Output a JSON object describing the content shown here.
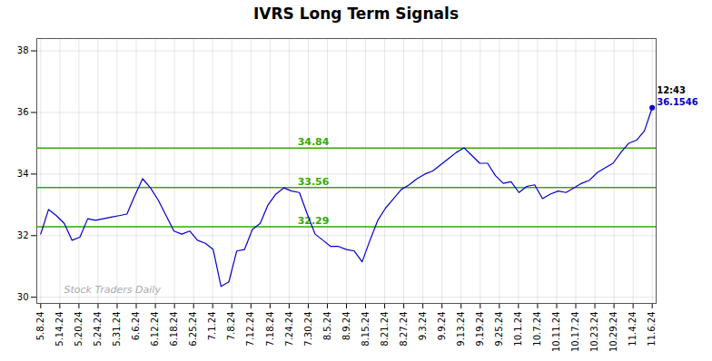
{
  "chart_data": {
    "type": "line",
    "title": "IVRS Long Term Signals",
    "color": "#0000cc",
    "values": [
      32.05,
      32.85,
      32.65,
      32.4,
      31.85,
      31.95,
      32.55,
      32.5,
      32.55,
      32.6,
      32.65,
      32.7,
      33.3,
      33.85,
      33.55,
      33.15,
      32.65,
      32.15,
      32.05,
      32.15,
      31.85,
      31.75,
      31.55,
      30.35,
      30.5,
      31.5,
      31.55,
      32.2,
      32.4,
      33.0,
      33.35,
      33.55,
      33.45,
      33.4,
      32.7,
      32.05,
      31.85,
      31.65,
      31.65,
      31.55,
      31.5,
      31.15,
      31.85,
      32.5,
      32.9,
      33.2,
      33.5,
      33.65,
      33.85,
      34.0,
      34.1,
      34.3,
      34.5,
      34.7,
      34.85,
      34.6,
      34.35,
      34.35,
      33.95,
      33.7,
      33.75,
      33.4,
      33.6,
      33.65,
      33.2,
      33.35,
      33.45,
      33.4,
      33.55,
      33.7,
      33.8,
      34.05,
      34.2,
      34.35,
      34.7,
      35.0,
      35.1,
      35.4,
      36.1546
    ],
    "xlim": [
      -0.5,
      78.5
    ],
    "xticks": [
      {
        "value": 0,
        "label": "5.8.24"
      },
      {
        "value": 2.4375,
        "label": "5.14.24"
      },
      {
        "value": 4.875,
        "label": "5.20.24"
      },
      {
        "value": 7.3125,
        "label": "5.24.24"
      },
      {
        "value": 9.75,
        "label": "5.31.24"
      },
      {
        "value": 12.1875,
        "label": "6.6.24"
      },
      {
        "value": 14.625,
        "label": "6.12.24"
      },
      {
        "value": 17.0625,
        "label": "6.18.24"
      },
      {
        "value": 19.5,
        "label": "6.25.24"
      },
      {
        "value": 21.9375,
        "label": "7.1.24"
      },
      {
        "value": 24.375,
        "label": "7.8.24"
      },
      {
        "value": 26.8125,
        "label": "7.12.24"
      },
      {
        "value": 29.25,
        "label": "7.18.24"
      },
      {
        "value": 31.6875,
        "label": "7.24.24"
      },
      {
        "value": 34.125,
        "label": "7.30.24"
      },
      {
        "value": 36.5625,
        "label": "8.5.24"
      },
      {
        "value": 39,
        "label": "8.9.24"
      },
      {
        "value": 41.4375,
        "label": "8.15.24"
      },
      {
        "value": 43.875,
        "label": "8.21.24"
      },
      {
        "value": 46.3125,
        "label": "8.27.24"
      },
      {
        "value": 48.75,
        "label": "9.3.24"
      },
      {
        "value": 51.1875,
        "label": "9.9.24"
      },
      {
        "value": 53.625,
        "label": "9.13.24"
      },
      {
        "value": 56.0625,
        "label": "9.19.24"
      },
      {
        "value": 58.5,
        "label": "9.25.24"
      },
      {
        "value": 60.9375,
        "label": "10.1.24"
      },
      {
        "value": 63.375,
        "label": "10.7.24"
      },
      {
        "value": 65.8125,
        "label": "10.11.24"
      },
      {
        "value": 68.25,
        "label": "10.17.24"
      },
      {
        "value": 70.6875,
        "label": "10.23.24"
      },
      {
        "value": 73.125,
        "label": "10.29.24"
      },
      {
        "value": 75.5625,
        "label": "11.4.24"
      },
      {
        "value": 78,
        "label": "11.6.24"
      }
    ],
    "ylim": [
      29.8,
      38.4
    ],
    "yticks": [
      30,
      32,
      34,
      36,
      38
    ],
    "grid": true,
    "hlines": [
      {
        "y": 34.84,
        "label": "34.84",
        "color": "#33aa00"
      },
      {
        "y": 33.56,
        "label": "33.56",
        "color": "#33aa00"
      },
      {
        "y": 32.29,
        "label": "32.29",
        "color": "#33aa00"
      }
    ],
    "annotations": [
      {
        "text": "12:43",
        "color": "#000000"
      },
      {
        "text": "36.1546",
        "color": "#0000cc"
      }
    ],
    "watermark": "Stock Traders Daily"
  }
}
